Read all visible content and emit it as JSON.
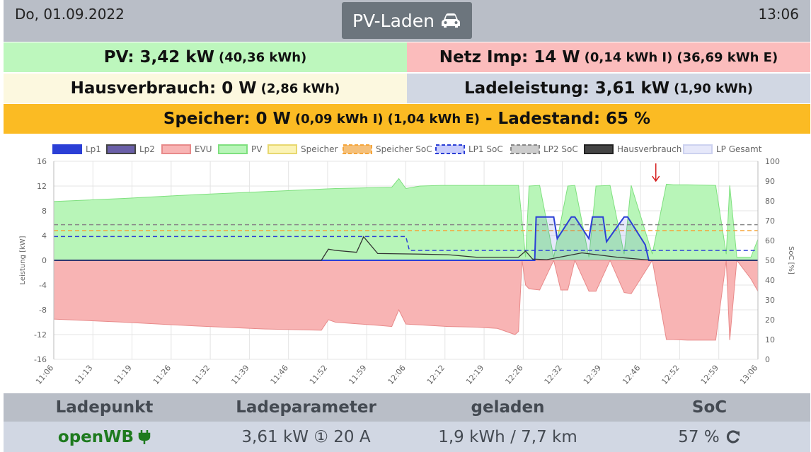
{
  "header": {
    "date": "Do, 01.09.2022",
    "mode": "PV-Laden",
    "time": "13:06"
  },
  "pv": {
    "label": "PV: 3,42 kW",
    "energy": "(40,36 kWh)"
  },
  "netz": {
    "label": "Netz Imp: 14 W",
    "import": "(0,14 kWh I)",
    "export": "(36,69 kWh E)"
  },
  "haus": {
    "label": "Hausverbrauch: 0 W",
    "energy": "(2,86 kWh)"
  },
  "lade": {
    "label": "Ladeleistung: 3,61 kW",
    "energy": "(1,90 kWh)"
  },
  "speicher": {
    "label": "Speicher: 0 W",
    "import": "(0,09 kWh I)",
    "export": "(1,04 kWh E)",
    "soc": "- Ladestand: 65 %"
  },
  "colors": {
    "pv": "#bdf7bd",
    "evu": "#fbbcbc",
    "lp1": "#2b3fd6",
    "speicher": "#fbbb23"
  },
  "chart_data": {
    "type": "area",
    "legend": [
      "Lp1",
      "Lp2",
      "EVU",
      "PV",
      "Speicher",
      "Speicher SoC",
      "LP1 SoC",
      "LP2 SoC",
      "Hausverbrauch",
      "LP Gesamt"
    ],
    "ylabel": "Leistung [kW]",
    "y2label": "SoC [%]",
    "ylim": [
      -16,
      16
    ],
    "y2lim": [
      0,
      100
    ],
    "yticks": [
      "16",
      "12",
      "8",
      "4",
      "0",
      "-4",
      "-8",
      "-12",
      "-16"
    ],
    "y2ticks": [
      "100",
      "90",
      "80",
      "70",
      "60",
      "50",
      "40",
      "30",
      "20",
      "10",
      "0"
    ],
    "xticks": [
      "11:06",
      "11:13",
      "11:19",
      "11:26",
      "11:32",
      "11:39",
      "11:46",
      "11:52",
      "11:59",
      "12:06",
      "12:12",
      "12:19",
      "12:26",
      "12:32",
      "12:39",
      "12:46",
      "12:52",
      "12:59",
      "13:06"
    ],
    "series": [
      {
        "name": "PV",
        "x": [
          0,
          10,
          20,
          30,
          40,
          48,
          49,
          50,
          52,
          55,
          60,
          66,
          67,
          67.5,
          69,
          71,
          73,
          74,
          76,
          77,
          79,
          81,
          82,
          85,
          87,
          88,
          90,
          94,
          95.5,
          96,
          97,
          99,
          100
        ],
        "values": [
          9.5,
          10,
          10.6,
          11.1,
          11.6,
          11.8,
          13.2,
          11.6,
          12,
          12.1,
          12.1,
          12.1,
          0.5,
          12,
          12.1,
          0.5,
          12,
          12.1,
          0.5,
          12,
          12.1,
          1,
          12.1,
          1,
          12.3,
          12.2,
          12.2,
          12.1,
          1,
          12.1,
          0.5,
          0.5,
          3.4
        ]
      },
      {
        "name": "EVU",
        "x": [
          0,
          10,
          20,
          30,
          38,
          39,
          40,
          46,
          48,
          49,
          50,
          56,
          60,
          63,
          65.5,
          66,
          66.5,
          67,
          67.5,
          69,
          71,
          72,
          73,
          74,
          76,
          77,
          79,
          81,
          82,
          85,
          87,
          88,
          90,
          94,
          95.5,
          96,
          97,
          99,
          100
        ],
        "values": [
          -9.5,
          -10,
          -10.6,
          -11.1,
          -11.3,
          -9.6,
          -10,
          -10.5,
          -10.7,
          -8,
          -10.3,
          -10.7,
          -10.8,
          -11,
          -12,
          -11.5,
          0,
          -4,
          -4.6,
          -4.8,
          0,
          -4.8,
          -4.8,
          0,
          -5,
          -5,
          0,
          -5.2,
          -5.4,
          0,
          -12.8,
          -12.8,
          -12.9,
          -12.9,
          0,
          -12.9,
          0,
          -3,
          -5
        ]
      },
      {
        "name": "Lp1",
        "x": [
          0,
          68.3,
          68.5,
          71,
          71.5,
          73.5,
          74,
          76,
          76.5,
          78,
          78.5,
          81,
          81.5,
          84,
          84.5,
          100
        ],
        "values": [
          0,
          0,
          7,
          7,
          3.5,
          7,
          7,
          3.5,
          7,
          7,
          3,
          7,
          7,
          2.5,
          0,
          0
        ]
      },
      {
        "name": "Hausverbrauch",
        "x": [
          0,
          38,
          39,
          40,
          43,
          44,
          46,
          52,
          56,
          60,
          66,
          67,
          68,
          70,
          75,
          80,
          85,
          100
        ],
        "values": [
          0,
          0,
          1.8,
          1.6,
          1.3,
          3.8,
          1.1,
          1,
          0.9,
          0.5,
          0.5,
          1.5,
          0.2,
          0.1,
          1.2,
          0.5,
          0,
          0
        ]
      },
      {
        "name": "Speicher SoC",
        "x": [
          0,
          100
        ],
        "values": [
          65,
          65
        ]
      },
      {
        "name": "LP2 SoC",
        "x": [
          0,
          100
        ],
        "values": [
          68,
          68
        ]
      },
      {
        "name": "LP1 SoC",
        "x": [
          0,
          50,
          50.5,
          100
        ],
        "values": [
          62,
          62,
          55,
          55
        ]
      }
    ]
  },
  "table": {
    "headers": [
      "Ladepunkt",
      "Ladeparameter",
      "geladen",
      "SoC"
    ],
    "row": {
      "name": "openWB",
      "params": "3,61 kW ① 20 A",
      "charged": "1,9 kWh / 7,7 km",
      "soc": "57 %"
    }
  }
}
